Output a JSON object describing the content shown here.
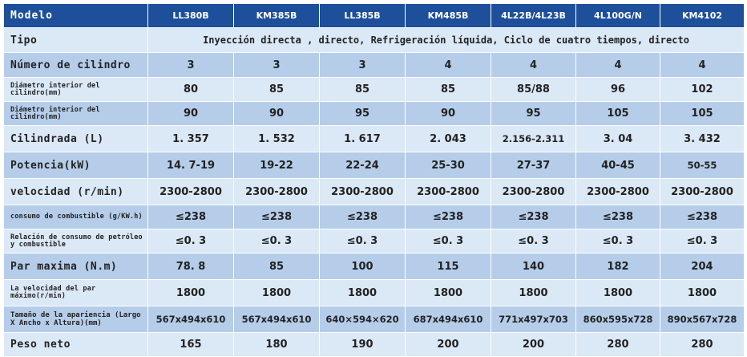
{
  "header": {
    "label": "Modelo",
    "models": [
      "LL380B",
      "KM385B",
      "LL385B",
      "KM485B",
      "4L22B/4L23B",
      "4L100G/N",
      "KM4102"
    ]
  },
  "tipo": {
    "label": "Tipo",
    "value": "Inyección directa , directo, Refrigeración líquida, Ciclo de cuatro tiempos, directo"
  },
  "rows": [
    {
      "label": "Número de cilindro",
      "values": [
        "3",
        "3",
        "3",
        "4",
        "4",
        "4",
        "4"
      ]
    },
    {
      "label": "Diámetro interior del cilindro(mm)",
      "values": [
        "80",
        "85",
        "85",
        "85",
        "85/88",
        "96",
        "102"
      ]
    },
    {
      "label": "Diámetro interior del cilindro(mm)",
      "values": [
        "90",
        "90",
        "95",
        "90",
        "95",
        "105",
        "105"
      ]
    },
    {
      "label": "Cilindrada (L)",
      "values": [
        "1. 357",
        "1. 532",
        "1. 617",
        "2. 043",
        "2.156-2.311",
        "3. 04",
        "3. 432"
      ]
    },
    {
      "label": "Potencia(kW)",
      "values": [
        "14. 7-19",
        "19-22",
        "22-24",
        "25-30",
        "27-37",
        "40-45",
        "50-55"
      ]
    },
    {
      "label": "velocidad (r/min)",
      "values": [
        "2300-2800",
        "2300-2800",
        "2300-2800",
        "2300-2800",
        "2300-2800",
        "2300-2800",
        "2300-2800"
      ]
    },
    {
      "label": "consumo de combustible (g/KW.h)",
      "values": [
        "≤238",
        "≤238",
        "≤238",
        "≤238",
        "≤238",
        "≤238",
        "≤238"
      ]
    },
    {
      "label": "Relación de consumo de petróleo y combustible",
      "values": [
        "≤0. 3",
        "≤0. 3",
        "≤0. 3",
        "≤0. 3",
        "≤0. 3",
        "≤0. 3",
        "≤0. 3"
      ]
    },
    {
      "label": "Par maxima (N.m)",
      "values": [
        "78. 8",
        "85",
        "100",
        "115",
        "140",
        "182",
        "204"
      ]
    },
    {
      "label": "La velocidad del par máximo(r/min)",
      "values": [
        "1800",
        "1800",
        "1800",
        "1800",
        "1800",
        "1800",
        "1800"
      ]
    },
    {
      "label": "Tamaño de la apariencia (Largo X Ancho x Altura)(mm)",
      "values": [
        "567x494x610",
        "567x494x610",
        "640×594×620",
        "687x494x610",
        "771x497x703",
        "860x595x728",
        "890x567x728"
      ]
    },
    {
      "label": "Peso neto",
      "values": [
        "165",
        "180",
        "190",
        "200",
        "200",
        "280",
        "280"
      ]
    }
  ],
  "colors": {
    "header": "#1d4f9a",
    "row_light": "#dbe8f6",
    "row_dark": "#b5cde9"
  }
}
